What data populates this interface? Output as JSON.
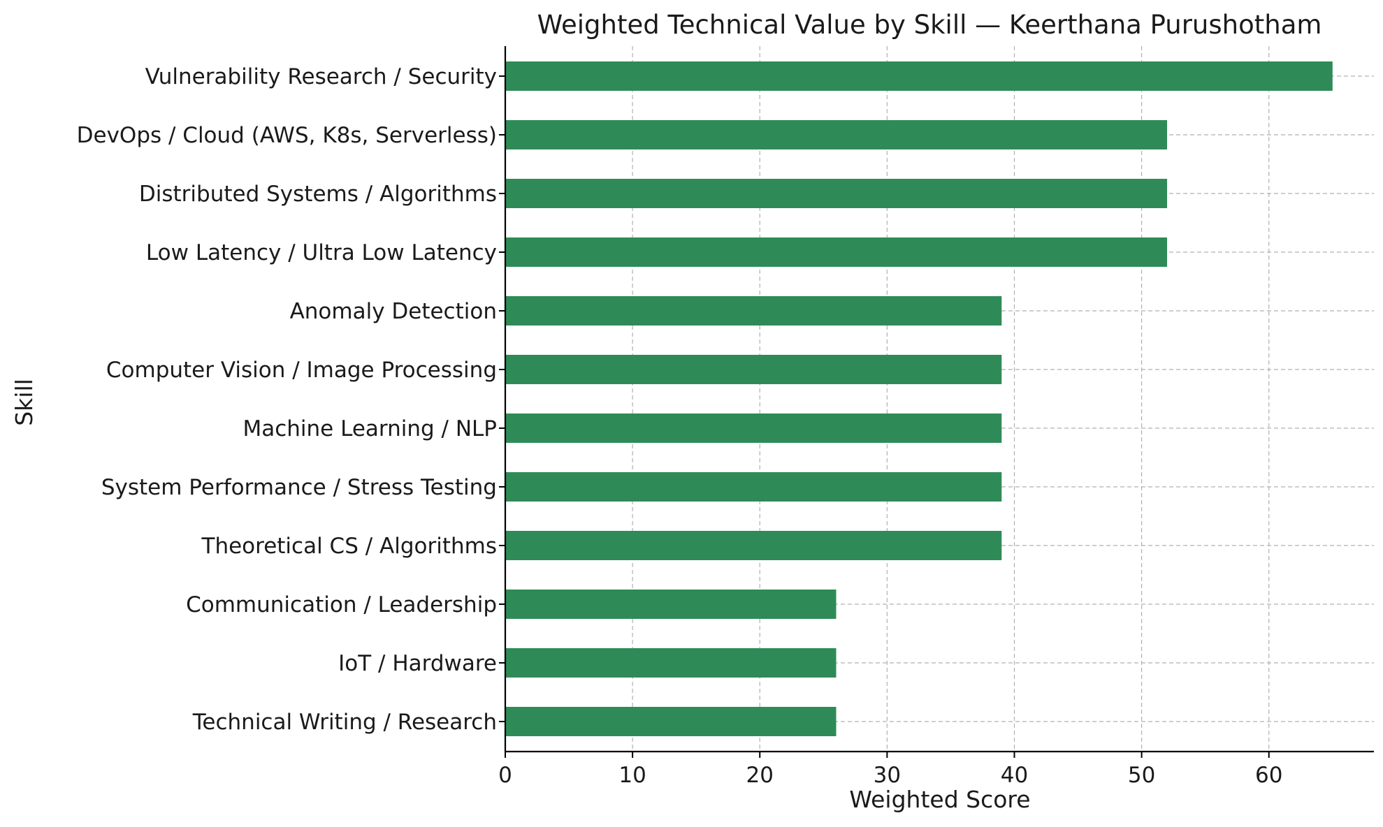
{
  "chart_data": {
    "type": "bar",
    "orientation": "horizontal",
    "title": "Weighted Technical Value by Skill — Keerthana Purushotham",
    "xlabel": "Weighted Score",
    "ylabel": "Skill",
    "xlim": [
      0,
      68.25
    ],
    "xticks": [
      0,
      10,
      20,
      30,
      40,
      50,
      60
    ],
    "grid": true,
    "bar_color": "#2e8b57",
    "categories": [
      "Vulnerability Research / Security",
      "DevOps / Cloud (AWS, K8s, Serverless)",
      "Distributed Systems / Algorithms",
      "Low Latency / Ultra Low Latency",
      "Anomaly Detection",
      "Computer Vision / Image Processing",
      "Machine Learning / NLP",
      "System Performance / Stress Testing",
      "Theoretical CS / Algorithms",
      "Communication / Leadership",
      "IoT / Hardware",
      "Technical Writing / Research"
    ],
    "values": [
      65,
      52,
      52,
      52,
      39,
      39,
      39,
      39,
      39,
      26,
      26,
      26
    ]
  }
}
